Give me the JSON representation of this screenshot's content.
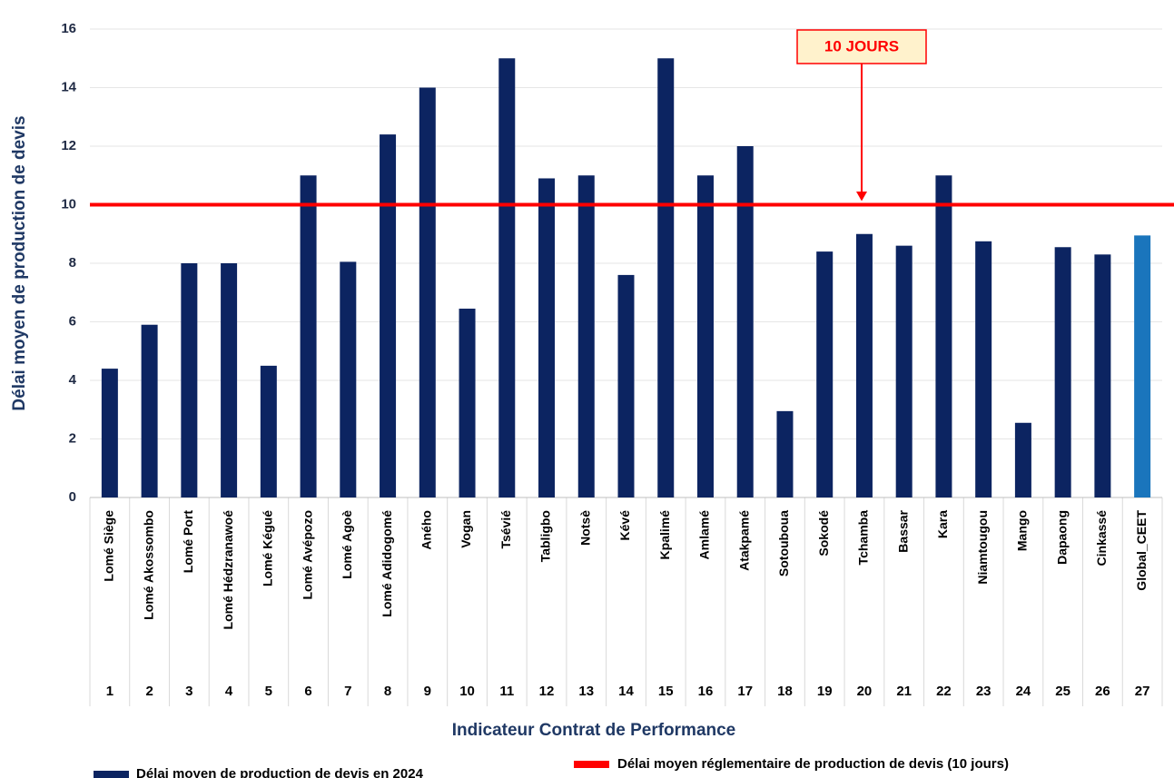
{
  "chart_data": {
    "type": "bar",
    "y_label": "Délai moyen de production de devis",
    "x_label": "Indicateur Contrat de Performance",
    "categories": [
      "Lomé Siège",
      "Lomé Akossombo",
      "Lomé Port",
      "Lomé Hédzranawoé",
      "Lomé Kégué",
      "Lomé Avépozo",
      "Lomé Agoè",
      "Lomé Adidogomé",
      "Aného",
      "Vogan",
      "Tsévié",
      "Tabligbo",
      "Notsè",
      "Kévé",
      "Kpalimé",
      "Amlamé",
      "Atakpamé",
      "Sotouboua",
      "Sokodé",
      "Tchamba",
      "Bassar",
      "Kara",
      "Niamtougou",
      "Mango",
      "Dapaong",
      "Cinkassé",
      "Global_CEET"
    ],
    "numbers": [
      1,
      2,
      3,
      4,
      5,
      6,
      7,
      8,
      9,
      10,
      11,
      12,
      13,
      14,
      15,
      16,
      17,
      18,
      19,
      20,
      21,
      22,
      23,
      24,
      25,
      26,
      27
    ],
    "series": [
      {
        "name": "Délai moyen de production de devis en 2024",
        "color": "#0c2461",
        "values": [
          4.4,
          5.9,
          8.0,
          8.0,
          4.5,
          11,
          8.05,
          12.4,
          14,
          6.45,
          15,
          10.9,
          11,
          7.6,
          15,
          11,
          12,
          2.95,
          8.4,
          9,
          8.6,
          11,
          8.75,
          2.55,
          8.55,
          8.3,
          8.95
        ],
        "colors": [
          "#0c2461",
          "#0c2461",
          "#0c2461",
          "#0c2461",
          "#0c2461",
          "#0c2461",
          "#0c2461",
          "#0c2461",
          "#0c2461",
          "#0c2461",
          "#0c2461",
          "#0c2461",
          "#0c2461",
          "#0c2461",
          "#0c2461",
          "#0c2461",
          "#0c2461",
          "#0c2461",
          "#0c2461",
          "#0c2461",
          "#0c2461",
          "#0c2461",
          "#0c2461",
          "#0c2461",
          "#0c2461",
          "#0c2461",
          "#1a75bc"
        ]
      }
    ],
    "reference": {
      "name": "Délai moyen réglementaire de production de devis (10 jours)",
      "value": 10,
      "color": "#ff0000",
      "label": "10 JOURS"
    },
    "ylim": [
      0,
      16
    ],
    "yticks": [
      0,
      2,
      4,
      6,
      8,
      10,
      12,
      14,
      16
    ],
    "grid": true
  }
}
